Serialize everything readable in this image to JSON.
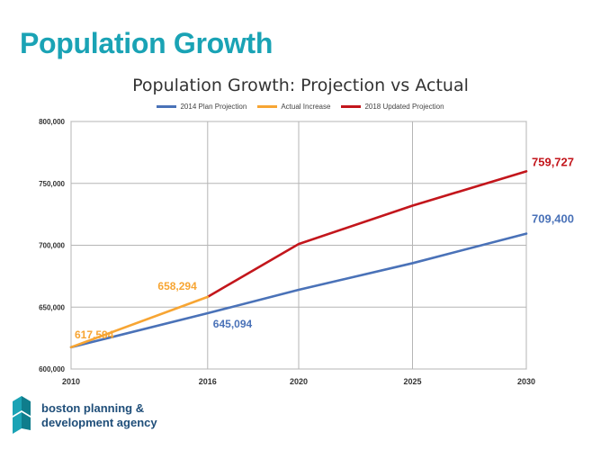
{
  "slide": {
    "title": "Population Growth"
  },
  "logo": {
    "line1": "boston planning &",
    "line2": "development agency",
    "color": "#1aa3b5"
  },
  "chart_data": {
    "type": "line",
    "title": "Population Growth: Projection vs Actual",
    "xlabel": "",
    "ylabel": "",
    "xlim": [
      2010,
      2030
    ],
    "ylim": [
      600000,
      800000
    ],
    "x_ticks": [
      2010,
      2016,
      2020,
      2025,
      2030
    ],
    "y_ticks": [
      600000,
      650000,
      700000,
      750000,
      800000
    ],
    "y_tick_labels": [
      "600,000",
      "650,000",
      "700,000",
      "750,000",
      "800,000"
    ],
    "grid": true,
    "legend_position": "top-center",
    "series": [
      {
        "name": "2014 Plan Projection",
        "color": "#4a72b8",
        "x": [
          2010,
          2016,
          2020,
          2025,
          2030
        ],
        "values": [
          617594,
          645094,
          664000,
          685500,
          709400
        ]
      },
      {
        "name": "Actual Increase",
        "color": "#f7a533",
        "x": [
          2010,
          2016
        ],
        "values": [
          617594,
          658294
        ]
      },
      {
        "name": "2018 Updated Projection",
        "color": "#c3161c",
        "x": [
          2016,
          2020,
          2025,
          2030
        ],
        "values": [
          658294,
          701000,
          732000,
          759727
        ]
      }
    ],
    "annotations": [
      {
        "text": "617,594",
        "color": "#f7a533"
      },
      {
        "text": "658,294",
        "color": "#f7a533"
      },
      {
        "text": "645,094",
        "color": "#4a72b8"
      },
      {
        "text": "709,400",
        "color": "#4a72b8"
      },
      {
        "text": "759,727",
        "color": "#c3161c"
      }
    ]
  }
}
